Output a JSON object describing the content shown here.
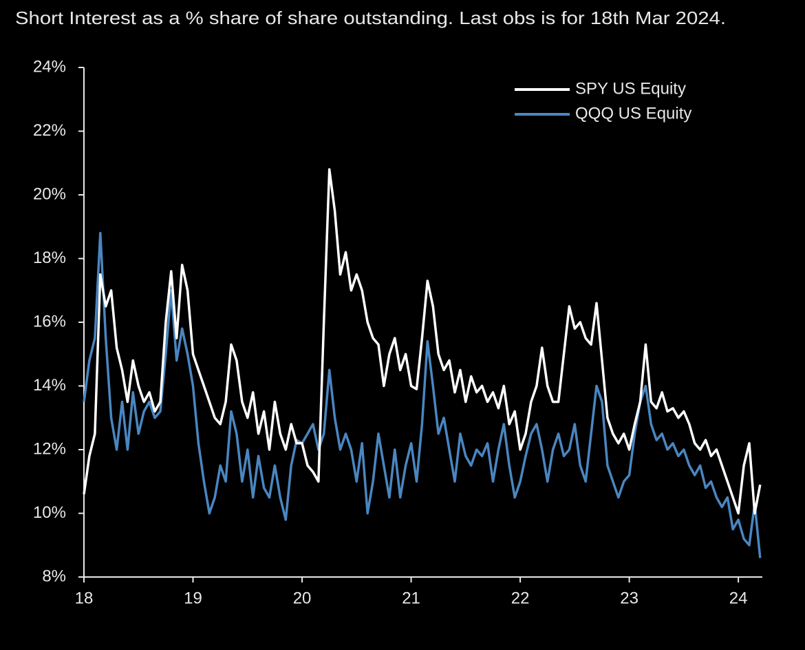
{
  "chart_data": {
    "type": "line",
    "title": "Short Interest as a % share of share outstanding. Last obs is for 18th Mar 2024.",
    "x": [
      18.0,
      18.05,
      18.1,
      18.15,
      18.2,
      18.25,
      18.3,
      18.35,
      18.4,
      18.45,
      18.5,
      18.55,
      18.6,
      18.65,
      18.7,
      18.75,
      18.8,
      18.85,
      18.9,
      18.95,
      19.0,
      19.05,
      19.1,
      19.15,
      19.2,
      19.25,
      19.3,
      19.35,
      19.4,
      19.45,
      19.5,
      19.55,
      19.6,
      19.65,
      19.7,
      19.75,
      19.8,
      19.85,
      19.9,
      19.95,
      20.0,
      20.05,
      20.1,
      20.15,
      20.2,
      20.25,
      20.3,
      20.35,
      20.4,
      20.45,
      20.5,
      20.55,
      20.6,
      20.65,
      20.7,
      20.75,
      20.8,
      20.85,
      20.9,
      20.95,
      21.0,
      21.05,
      21.1,
      21.15,
      21.2,
      21.25,
      21.3,
      21.35,
      21.4,
      21.45,
      21.5,
      21.55,
      21.6,
      21.65,
      21.7,
      21.75,
      21.8,
      21.85,
      21.9,
      21.95,
      22.0,
      22.05,
      22.1,
      22.15,
      22.2,
      22.25,
      22.3,
      22.35,
      22.4,
      22.45,
      22.5,
      22.55,
      22.6,
      22.65,
      22.7,
      22.75,
      22.8,
      22.85,
      22.9,
      22.95,
      23.0,
      23.05,
      23.1,
      23.15,
      23.2,
      23.25,
      23.3,
      23.35,
      23.4,
      23.45,
      23.5,
      23.55,
      23.6,
      23.65,
      23.7,
      23.75,
      23.8,
      23.85,
      23.9,
      23.95,
      24.0,
      24.05,
      24.1,
      24.15,
      24.2
    ],
    "series": [
      {
        "name": "SPY US Equity",
        "color": "#ffffff",
        "values": [
          10.6,
          11.8,
          12.5,
          17.5,
          16.5,
          17.0,
          15.2,
          14.5,
          13.5,
          14.8,
          14.0,
          13.5,
          13.8,
          13.2,
          13.5,
          16.0,
          17.6,
          15.5,
          17.8,
          17.0,
          15.0,
          14.5,
          14.0,
          13.5,
          13.0,
          12.8,
          13.5,
          15.3,
          14.8,
          13.5,
          13.0,
          13.8,
          12.5,
          13.2,
          12.0,
          13.5,
          12.5,
          12.0,
          12.8,
          12.2,
          12.2,
          11.5,
          11.3,
          11.0,
          16.0,
          20.8,
          19.5,
          17.5,
          18.2,
          17.0,
          17.5,
          17.0,
          16.0,
          15.5,
          15.3,
          14.0,
          15.0,
          15.5,
          14.5,
          15.0,
          14.0,
          13.9,
          15.5,
          17.3,
          16.5,
          15.0,
          14.5,
          14.8,
          13.8,
          14.5,
          13.5,
          14.3,
          13.8,
          14.0,
          13.5,
          13.8,
          13.3,
          14.0,
          12.8,
          13.2,
          12.0,
          12.5,
          13.5,
          14.0,
          15.2,
          14.0,
          13.5,
          13.5,
          15.0,
          16.5,
          15.8,
          16.0,
          15.5,
          15.3,
          16.6,
          14.8,
          13.0,
          12.5,
          12.2,
          12.5,
          12.0,
          12.8,
          13.5,
          15.3,
          13.5,
          13.3,
          13.8,
          13.2,
          13.3,
          13.0,
          13.2,
          12.8,
          12.2,
          12.0,
          12.3,
          11.8,
          12.0,
          11.5,
          11.0,
          10.5,
          10.0,
          11.5,
          12.2,
          10.0,
          10.9
        ]
      },
      {
        "name": "QQQ US Equity",
        "color": "#4a86c0",
        "values": [
          13.5,
          14.8,
          15.5,
          18.8,
          15.5,
          13.0,
          12.0,
          13.5,
          12.0,
          13.8,
          12.5,
          13.2,
          13.5,
          13.0,
          13.2,
          15.0,
          17.0,
          14.8,
          15.8,
          15.0,
          14.0,
          12.2,
          11.0,
          10.0,
          10.5,
          11.5,
          11.0,
          13.2,
          12.5,
          11.0,
          12.0,
          10.5,
          11.8,
          10.8,
          10.5,
          11.5,
          10.5,
          9.8,
          11.5,
          12.3,
          12.2,
          12.5,
          12.8,
          12.0,
          12.5,
          14.5,
          13.0,
          12.0,
          12.5,
          12.0,
          11.0,
          12.2,
          10.0,
          11.0,
          12.5,
          11.5,
          10.5,
          12.0,
          10.5,
          11.5,
          12.2,
          11.0,
          12.8,
          15.4,
          14.0,
          12.5,
          13.0,
          12.0,
          11.0,
          12.5,
          11.8,
          11.5,
          12.0,
          11.8,
          12.2,
          11.0,
          12.0,
          12.8,
          11.5,
          10.5,
          11.0,
          11.8,
          12.5,
          12.8,
          12.0,
          11.0,
          12.0,
          12.5,
          11.8,
          12.0,
          12.8,
          11.5,
          11.0,
          12.5,
          14.0,
          13.5,
          11.5,
          11.0,
          10.5,
          11.0,
          11.2,
          12.5,
          13.5,
          14.0,
          12.8,
          12.3,
          12.5,
          12.0,
          12.2,
          11.8,
          12.0,
          11.5,
          11.2,
          11.5,
          10.8,
          11.0,
          10.5,
          10.2,
          10.5,
          9.5,
          9.8,
          9.2,
          9.0,
          10.3,
          8.6
        ]
      }
    ],
    "xlim": [
      18,
      24.22
    ],
    "xticks": [
      18,
      19,
      20,
      21,
      22,
      23,
      24
    ],
    "ylim": [
      8,
      24
    ],
    "yticks": [
      {
        "value": 8,
        "label": "8%"
      },
      {
        "value": 10,
        "label": "10%"
      },
      {
        "value": 12,
        "label": "12%"
      },
      {
        "value": 14,
        "label": "14%"
      },
      {
        "value": 16,
        "label": "16%"
      },
      {
        "value": 18,
        "label": "18%"
      },
      {
        "value": 20,
        "label": "20%"
      },
      {
        "value": 22,
        "label": "22%"
      },
      {
        "value": 24,
        "label": "24%"
      }
    ],
    "grid": false,
    "legend": "top-right"
  }
}
